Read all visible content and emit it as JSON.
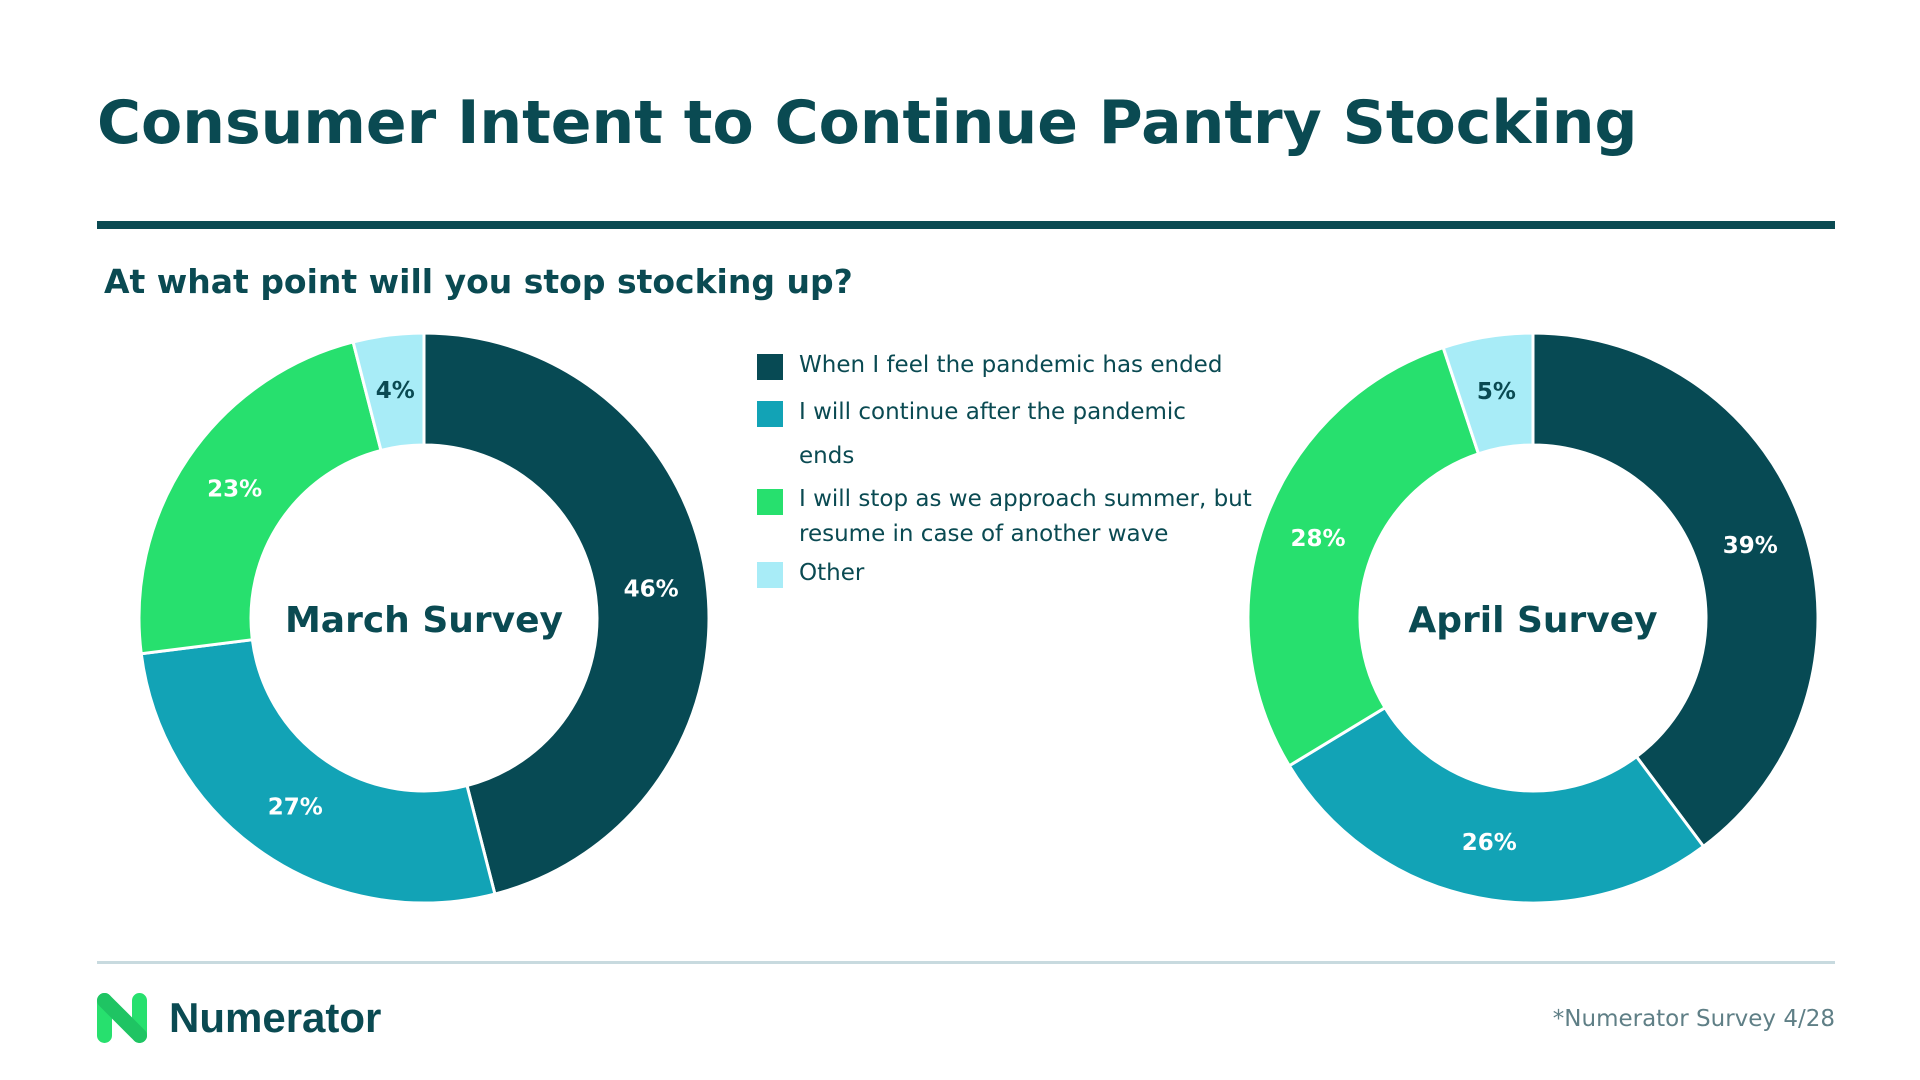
{
  "title": "Consumer Intent to Continue Pantry Stocking",
  "subtitle": "At what point will you stop stocking up?",
  "legend": [
    {
      "label": "When I feel the pandemic has ended",
      "color": "#074a54"
    },
    {
      "label": "I will continue after the pandemic ends",
      "color": "#12a3b6"
    },
    {
      "label": "I will stop as we approach summer, but resume in case of another wave",
      "color": "#27e06e"
    },
    {
      "label": "Other",
      "color": "#a8ecf7"
    }
  ],
  "chart_data": [
    {
      "type": "pie",
      "variant": "donut",
      "center_label": "March Survey",
      "categories": [
        "When I feel the pandemic has ended",
        "I will continue after the pandemic ends",
        "I will stop as we approach summer, but resume in case of another wave",
        "Other"
      ],
      "values": [
        46,
        27,
        23,
        4
      ],
      "labels": [
        "46%",
        "27%",
        "23%",
        "4%"
      ]
    },
    {
      "type": "pie",
      "variant": "donut",
      "center_label": "April Survey",
      "categories": [
        "When I feel the pandemic has ended",
        "I will continue after the pandemic ends",
        "I will stop as we approach summer, but resume in case of another wave",
        "Other"
      ],
      "values": [
        39,
        26,
        28,
        5
      ],
      "labels": [
        "39%",
        "26%",
        "28%",
        "5%"
      ]
    }
  ],
  "footer": {
    "brand": "Numerator",
    "note": "*Numerator Survey 4/28"
  }
}
